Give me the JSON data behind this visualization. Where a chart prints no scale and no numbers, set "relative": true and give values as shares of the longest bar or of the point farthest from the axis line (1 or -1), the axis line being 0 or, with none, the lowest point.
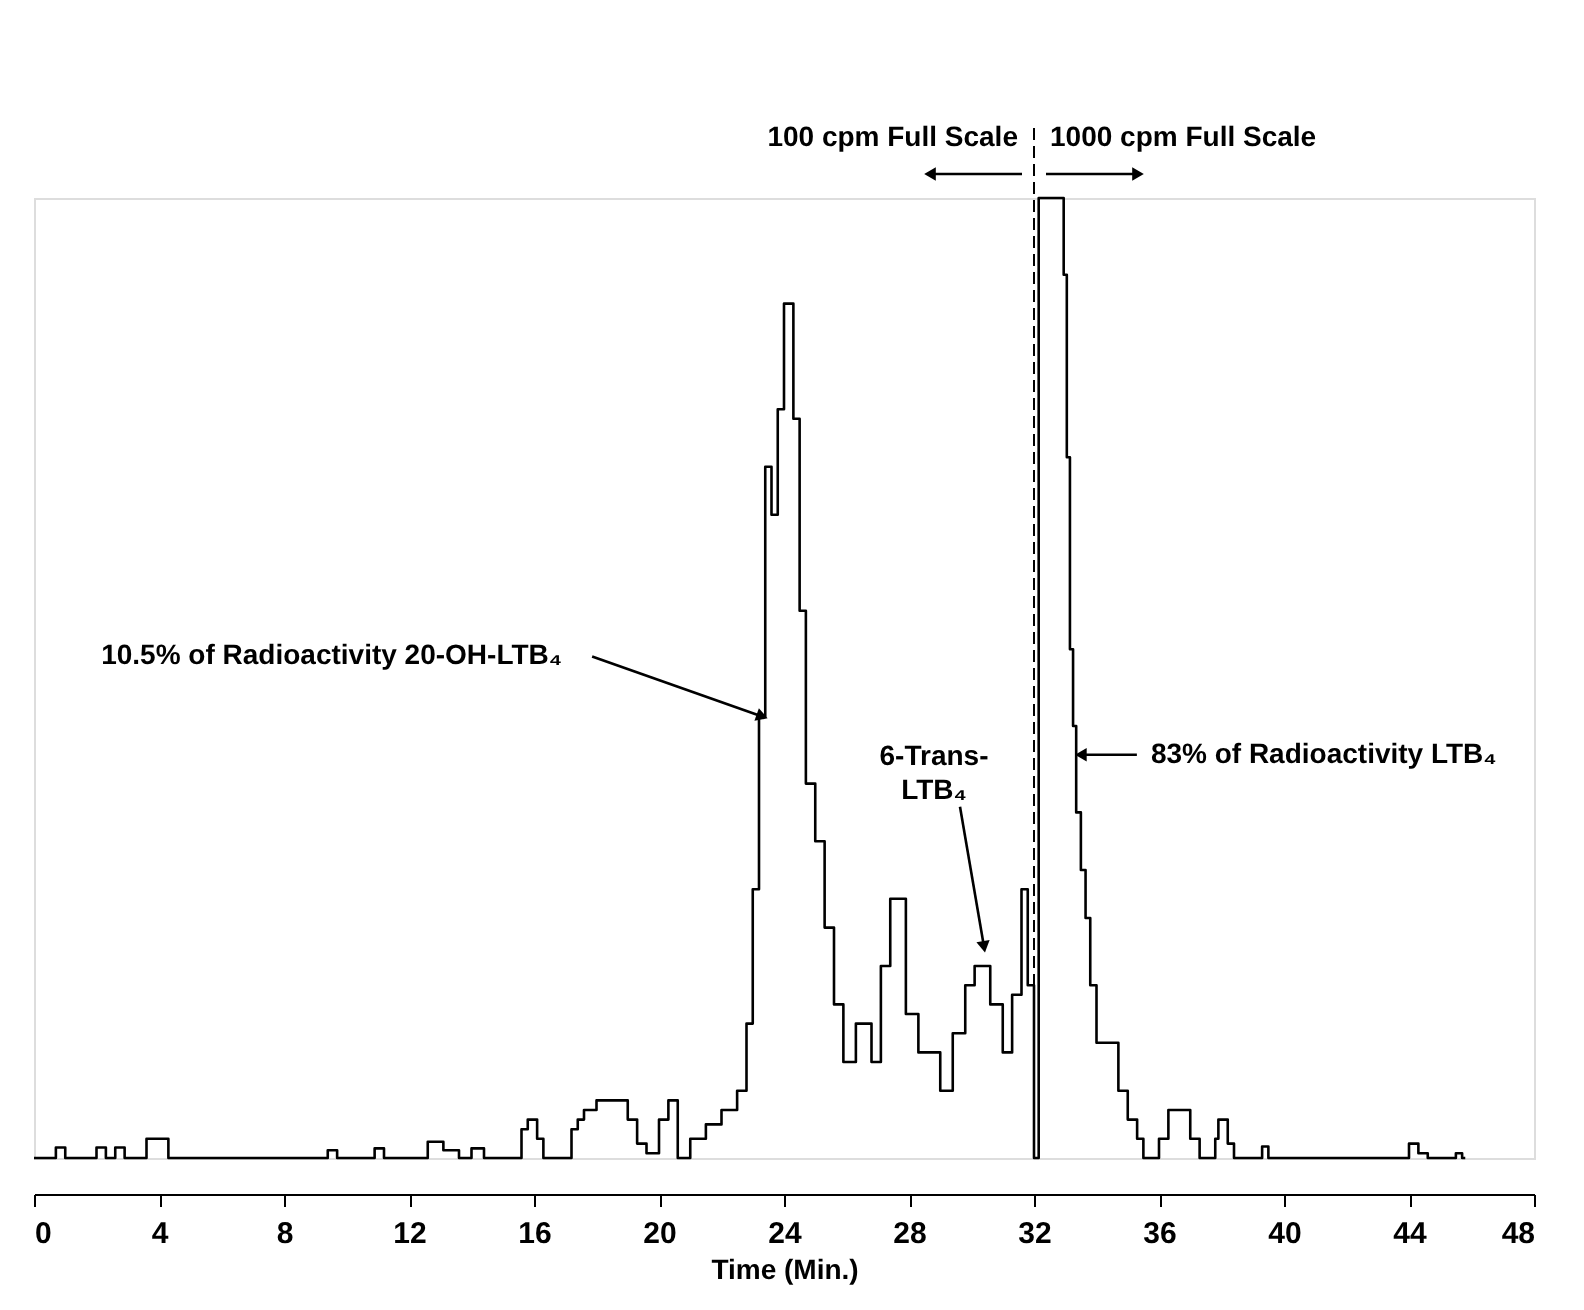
{
  "chart_data": {
    "type": "step",
    "relative": true,
    "xlabel": "Time (Min.)",
    "xlim": [
      0,
      48
    ],
    "xticks": [
      0,
      4,
      8,
      12,
      16,
      20,
      24,
      28,
      32,
      36,
      40,
      44,
      48
    ],
    "grid": false,
    "series": [
      {
        "color": "#000000",
        "x": [
          0,
          0.7,
          1.0,
          2.0,
          2.3,
          2.6,
          2.9,
          3.6,
          4.3,
          9.4,
          9.7,
          10.9,
          11.2,
          12.6,
          13.1,
          13.6,
          14.0,
          14.4,
          15.6,
          15.8,
          16.1,
          16.3,
          17.2,
          17.4,
          17.6,
          18.0,
          19.0,
          19.3,
          19.6,
          20.0,
          20.3,
          20.6,
          21.0,
          21.5,
          22.0,
          22.5,
          22.8,
          23.0,
          23.2,
          23.4,
          23.6,
          23.8,
          24.0,
          24.3,
          24.5,
          24.7,
          25.0,
          25.3,
          25.6,
          25.9,
          26.3,
          26.8,
          27.1,
          27.4,
          27.9,
          28.3,
          29.0,
          29.4,
          29.8,
          30.1,
          30.6,
          31.0,
          31.3,
          31.6,
          31.8,
          32.0,
          32.15,
          32.95,
          33.05,
          33.15,
          33.25,
          33.35,
          33.5,
          33.65,
          33.8,
          34.0,
          34.7,
          35.0,
          35.3,
          35.5,
          36.0,
          36.3,
          37.0,
          37.3,
          37.8,
          37.9,
          38.2,
          38.4,
          39.3,
          39.5,
          44.0,
          44.3,
          44.6,
          45.5,
          45.7,
          45.8
        ],
        "values": [
          0,
          0.011,
          0,
          0.011,
          0,
          0.011,
          0,
          0.02,
          0,
          0.008,
          0,
          0.01,
          0,
          0.017,
          0.008,
          0,
          0.01,
          0,
          0.03,
          0.04,
          0.02,
          0,
          0.03,
          0.04,
          0.05,
          0.06,
          0.04,
          0.015,
          0.005,
          0.04,
          0.06,
          0,
          0.02,
          0.035,
          0.05,
          0.07,
          0.14,
          0.28,
          0.46,
          0.72,
          0.67,
          0.78,
          0.89,
          0.77,
          0.57,
          0.39,
          0.33,
          0.24,
          0.16,
          0.1,
          0.14,
          0.1,
          0.2,
          0.27,
          0.15,
          0.11,
          0.07,
          0.13,
          0.18,
          0.2,
          0.16,
          0.11,
          0.17,
          0.28,
          0.18,
          0,
          1.0,
          0.92,
          0.73,
          0.53,
          0.45,
          0.36,
          0.3,
          0.25,
          0.18,
          0.12,
          0.07,
          0.04,
          0.02,
          0,
          0.02,
          0.05,
          0.02,
          0,
          0.02,
          0.04,
          0.015,
          0,
          0.012,
          0,
          0.015,
          0.005,
          0,
          0.005,
          0,
          0
        ]
      }
    ],
    "ref_lines": [
      {
        "axis": "x",
        "value": 32,
        "label": null,
        "line_style": "dashed",
        "color": "#000000"
      }
    ],
    "annotations": [
      {
        "text": "10.5% of Radioactivity 20-OH-LTB₄",
        "x": 23.3,
        "y": 0.46
      },
      {
        "text": "6-Trans-\nLTB₄",
        "x": 30.4,
        "y": 0.22
      },
      {
        "text": "83% of Radioactivity LTB₄",
        "x": 33.5,
        "y": 0.42
      },
      {
        "text": "100 cpm Full Scale",
        "x": 32
      },
      {
        "text": "1000 cpm Full Scale",
        "x": 32
      }
    ]
  }
}
